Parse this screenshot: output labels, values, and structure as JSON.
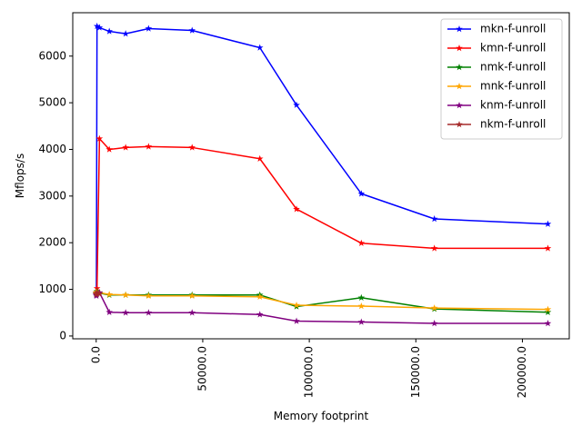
{
  "chart_data": {
    "type": "line",
    "title": "",
    "xlabel": "Memory footprint",
    "ylabel": "Mflops/s",
    "xlim": [
      -11000,
      222000
    ],
    "ylim": [
      -60,
      6930
    ],
    "x_ticks": [
      0,
      50000,
      100000,
      150000,
      200000
    ],
    "x_tick_labels": [
      "0.0",
      "50000.0",
      "100000.0",
      "150000.0",
      "200000.0"
    ],
    "y_ticks": [
      0,
      1000,
      2000,
      3000,
      4000,
      5000,
      6000
    ],
    "y_tick_labels": [
      "0",
      "1000",
      "2000",
      "3000",
      "4000",
      "5000",
      "6000"
    ],
    "grid": false,
    "legend_position": "upper-right",
    "marker": "star",
    "x": [
      24,
      96,
      384,
      1536,
      6144,
      13824,
      24576,
      45000,
      76800,
      94000,
      124416,
      158700,
      211968
    ],
    "series": [
      {
        "name": "mkn-f-unroll",
        "color": "#0000ff",
        "values": [
          920,
          900,
          6640,
          6610,
          6530,
          6480,
          6590,
          6550,
          6180,
          4950,
          3050,
          2510,
          2400
        ]
      },
      {
        "name": "kmn-f-unroll",
        "color": "#ff0000",
        "values": [
          930,
          910,
          1020,
          4230,
          4000,
          4040,
          4060,
          4040,
          3800,
          2720,
          1990,
          1880,
          1880
        ]
      },
      {
        "name": "nmk-f-unroll",
        "color": "#008000",
        "values": [
          920,
          900,
          960,
          920,
          880,
          880,
          880,
          880,
          880,
          630,
          820,
          580,
          510
        ]
      },
      {
        "name": "mnk-f-unroll",
        "color": "#ffa500",
        "values": [
          930,
          920,
          940,
          930,
          890,
          880,
          860,
          860,
          840,
          660,
          640,
          600,
          570
        ]
      },
      {
        "name": "knm-f-unroll",
        "color": "#800080",
        "values": [
          880,
          860,
          900,
          930,
          510,
          500,
          500,
          500,
          460,
          320,
          300,
          270,
          270
        ]
      },
      {
        "name": "nkm-f-unroll",
        "color": "#a52a2a",
        "values": [
          900,
          890,
          930,
          900,
          null,
          null,
          null,
          null,
          null,
          null,
          null,
          null,
          null
        ]
      }
    ]
  }
}
